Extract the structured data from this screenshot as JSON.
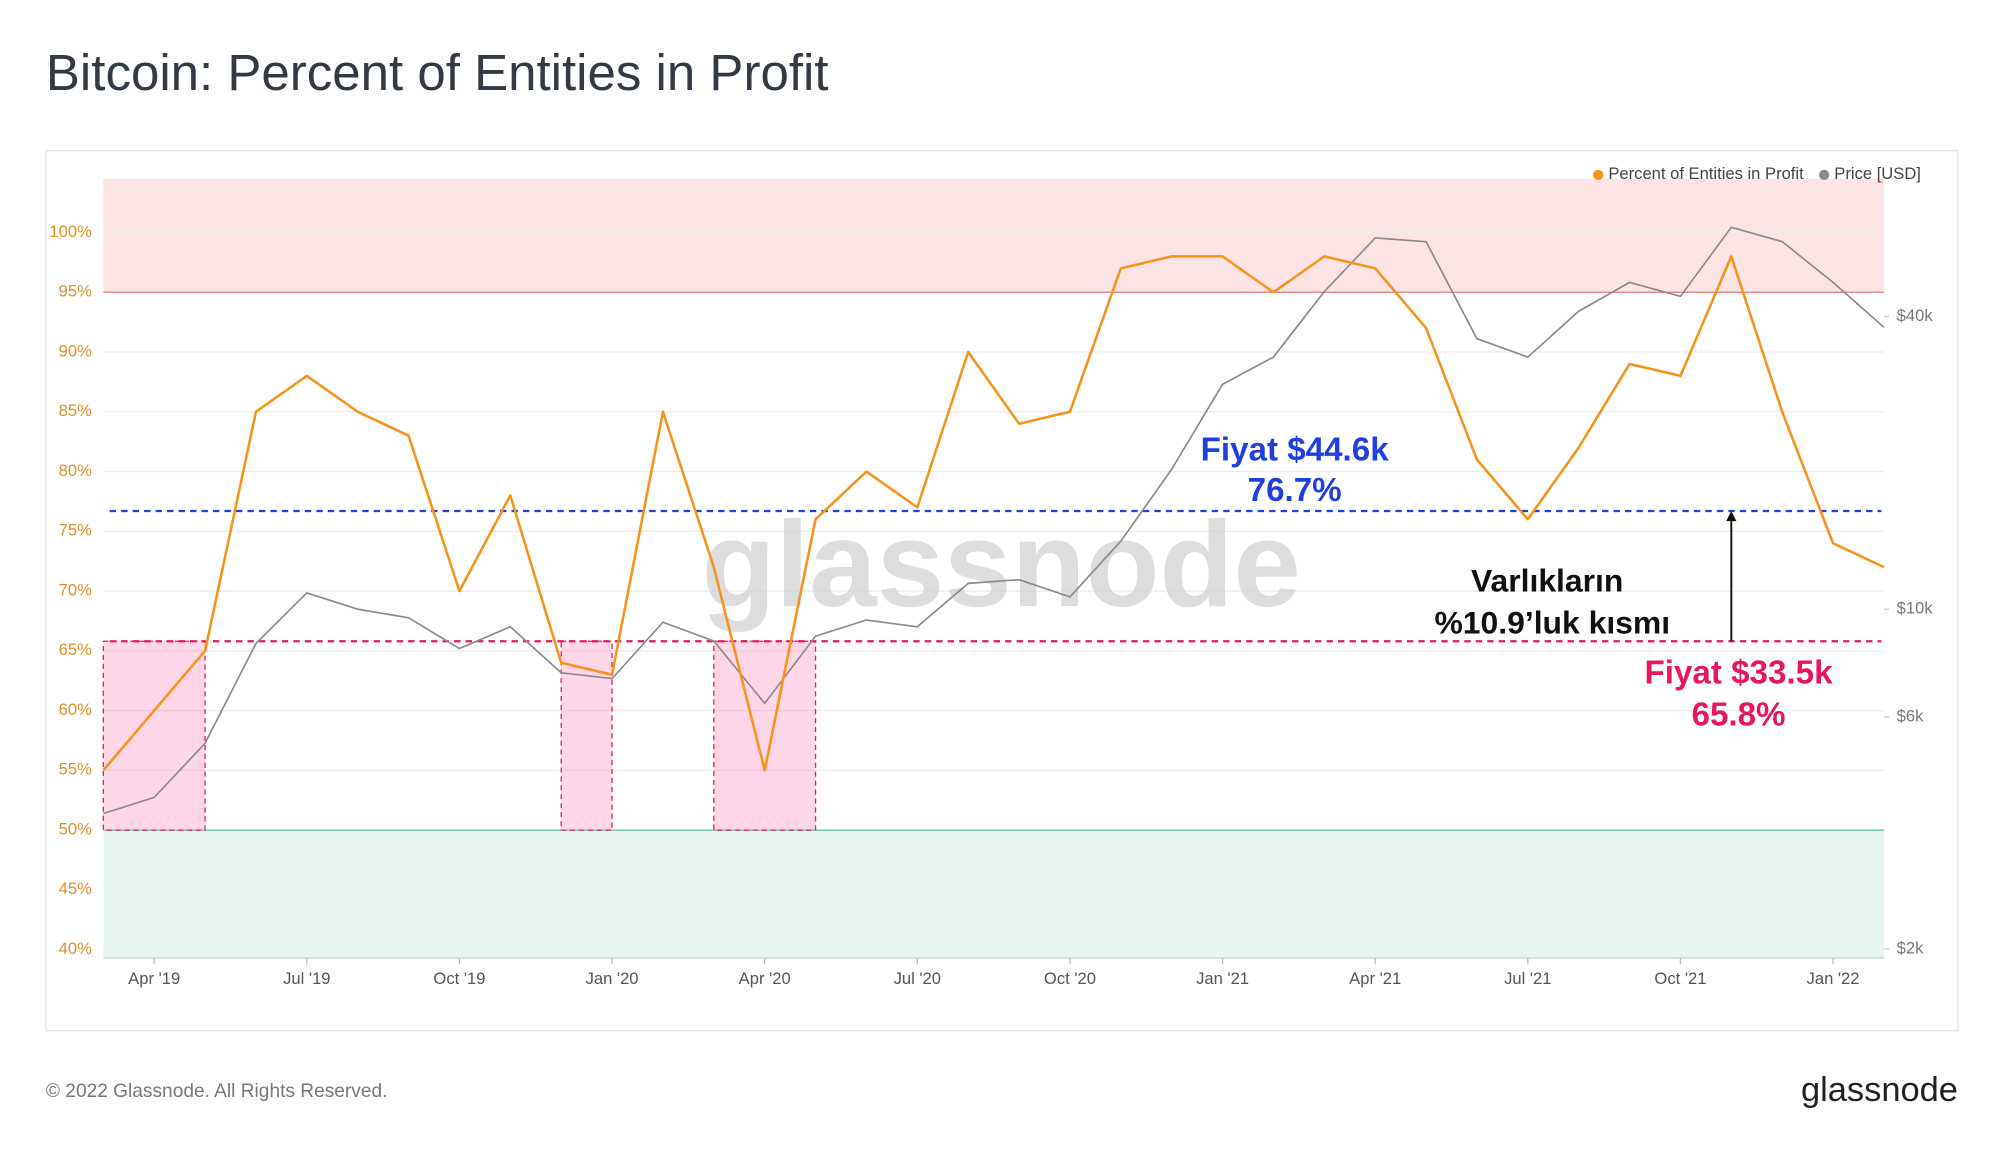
{
  "chart_data": {
    "type": "line",
    "title": "Bitcoin: Percent of Entities in Profit",
    "watermark": "glassnode",
    "x": [
      "2019-03",
      "2019-04",
      "2019-05",
      "2019-06",
      "2019-07",
      "2019-08",
      "2019-09",
      "2019-10",
      "2019-11",
      "2019-12",
      "2020-01",
      "2020-02",
      "2020-03",
      "2020-04",
      "2020-05",
      "2020-06",
      "2020-07",
      "2020-08",
      "2020-09",
      "2020-10",
      "2020-11",
      "2020-12",
      "2021-01",
      "2021-02",
      "2021-03",
      "2021-04",
      "2021-05",
      "2021-06",
      "2021-07",
      "2021-08",
      "2021-09",
      "2021-10",
      "2021-11",
      "2021-12",
      "2022-01",
      "2022-02"
    ],
    "series": [
      {
        "name": "Percent of Entities in Profit",
        "color": "#f7931a",
        "axis": "y",
        "values": [
          55,
          60,
          65,
          85,
          88,
          85,
          83,
          70,
          78,
          64,
          63,
          85,
          72,
          55,
          76,
          80,
          77,
          90,
          84,
          85,
          97,
          98,
          98,
          95,
          98,
          97,
          92,
          81,
          76,
          82,
          89,
          88,
          98,
          85,
          74,
          72
        ]
      },
      {
        "name": "Price [USD]",
        "color": "#8a8a8a",
        "axis": "y2",
        "values": [
          3800,
          4100,
          5300,
          8500,
          10800,
          10000,
          9600,
          8300,
          9200,
          7400,
          7200,
          9400,
          8600,
          6400,
          8800,
          9500,
          9200,
          11300,
          11500,
          10600,
          13800,
          19400,
          29000,
          33000,
          45000,
          58000,
          57000,
          36000,
          33000,
          41000,
          47000,
          44000,
          61000,
          57000,
          47000,
          38000
        ]
      }
    ],
    "xlim": [
      "2019-03",
      "2022-02"
    ],
    "xticks": [
      {
        "value": "2019-04",
        "label": "Apr '19"
      },
      {
        "value": "2019-07",
        "label": "Jul '19"
      },
      {
        "value": "2019-10",
        "label": "Oct '19"
      },
      {
        "value": "2020-01",
        "label": "Jan '20"
      },
      {
        "value": "2020-04",
        "label": "Apr '20"
      },
      {
        "value": "2020-07",
        "label": "Jul '20"
      },
      {
        "value": "2020-10",
        "label": "Oct '20"
      },
      {
        "value": "2021-01",
        "label": "Jan '21"
      },
      {
        "value": "2021-04",
        "label": "Apr '21"
      },
      {
        "value": "2021-07",
        "label": "Jul '21"
      },
      {
        "value": "2021-10",
        "label": "Oct '21"
      },
      {
        "value": "2022-01",
        "label": "Jan '22"
      }
    ],
    "ylim": [
      39.3,
      104.5
    ],
    "yticks": [
      {
        "value": 40,
        "label": "40%"
      },
      {
        "value": 45,
        "label": "45%"
      },
      {
        "value": 50,
        "label": "50%"
      },
      {
        "value": 55,
        "label": "55%"
      },
      {
        "value": 60,
        "label": "60%"
      },
      {
        "value": 65,
        "label": "65%"
      },
      {
        "value": 70,
        "label": "70%"
      },
      {
        "value": 75,
        "label": "75%"
      },
      {
        "value": 80,
        "label": "80%"
      },
      {
        "value": 85,
        "label": "85%"
      },
      {
        "value": 90,
        "label": "90%"
      },
      {
        "value": 95,
        "label": "95%"
      },
      {
        "value": 100,
        "label": "100%"
      }
    ],
    "y2lim": [
      1917,
      76800
    ],
    "y2ticks": [
      {
        "value": 2000,
        "label": "$2k"
      },
      {
        "value": 6000,
        "label": "$6k"
      },
      {
        "value": 10000,
        "label": "$10k"
      },
      {
        "value": 40000,
        "label": "$40k"
      }
    ],
    "y2_log": true,
    "grid": true,
    "legend": "top-right",
    "zones": {
      "upper": 95,
      "lower": 50
    },
    "levels": [
      {
        "value": 76.7,
        "color": "#1f3fe0"
      },
      {
        "value": 65.8,
        "color": "#e8175d"
      }
    ],
    "highlights": [
      {
        "from": "2019-03",
        "to": "2019-05"
      },
      {
        "from": "2019-12",
        "to": "2020-01"
      },
      {
        "from": "2020-03",
        "to": "2020-05"
      }
    ],
    "arrow_x": "2021-11",
    "annotations": [
      "Fiyat $44.6k",
      "76.7%",
      "Varlıkların",
      "%10.9’luk kısmı",
      "Fiyat $33.5k",
      "65.8%"
    ]
  },
  "footer": {
    "copyright": "© 2022 Glassnode. All Rights Reserved.",
    "brand": "glassnode"
  }
}
